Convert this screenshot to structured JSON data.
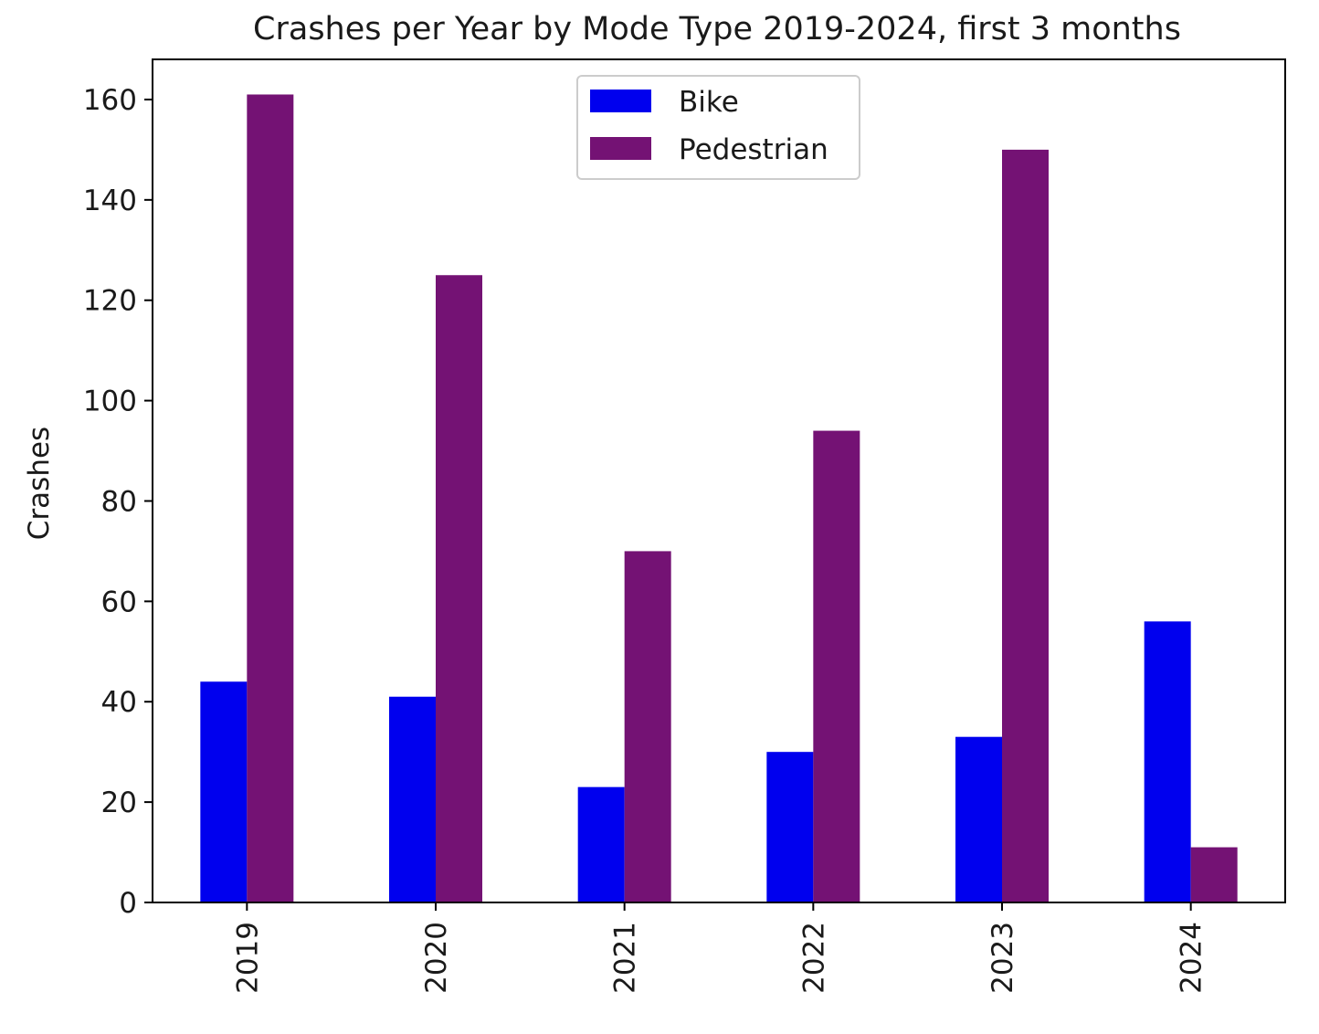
{
  "chart_data": {
    "type": "bar",
    "title": "Crashes per Year by Mode Type 2019-2024, first 3 months",
    "xlabel": "",
    "ylabel": "Crashes",
    "categories": [
      "2019",
      "2020",
      "2021",
      "2022",
      "2023",
      "2024"
    ],
    "series": [
      {
        "name": "Bike",
        "color": "#0000ee",
        "values": [
          44,
          41,
          23,
          30,
          33,
          56
        ]
      },
      {
        "name": "Pedestrian",
        "color": "#741274",
        "values": [
          161,
          125,
          70,
          94,
          150,
          11
        ]
      }
    ],
    "ylim": [
      0,
      168
    ],
    "yticks": [
      0,
      20,
      40,
      60,
      80,
      100,
      120,
      140,
      160
    ],
    "ytick_labels": [
      "0",
      "20",
      "40",
      "60",
      "80",
      "100",
      "120",
      "140",
      "160"
    ],
    "xtick_rotation": "vertical",
    "grid": false,
    "legend_position": "top-center"
  }
}
